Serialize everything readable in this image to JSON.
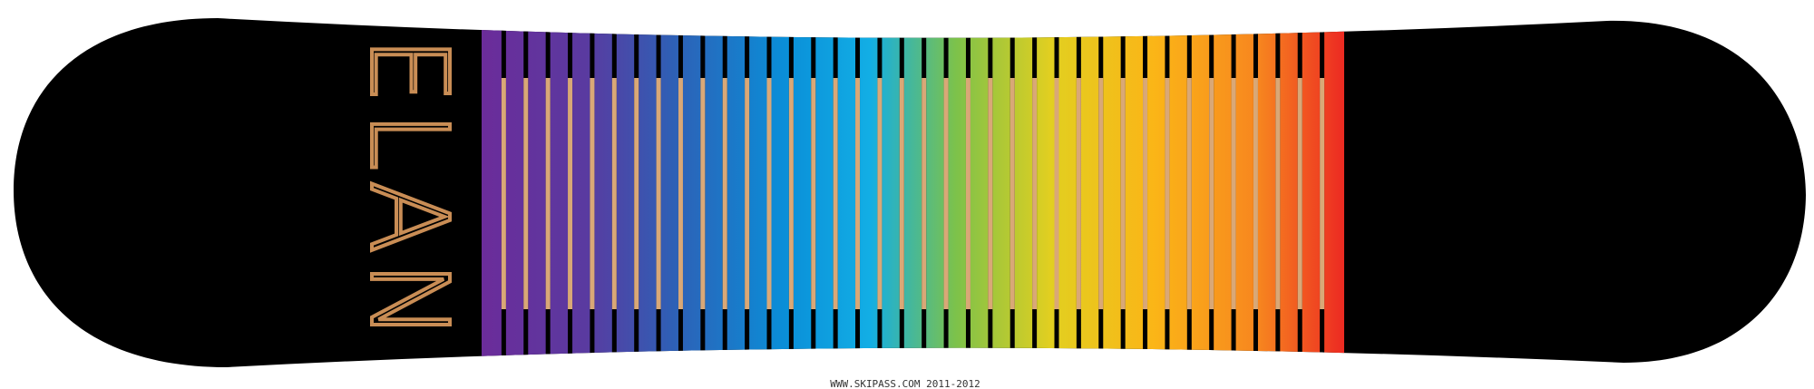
{
  "logo": "ELAN",
  "footer": "WWW.SKIPASS.COM 2011-2012"
}
